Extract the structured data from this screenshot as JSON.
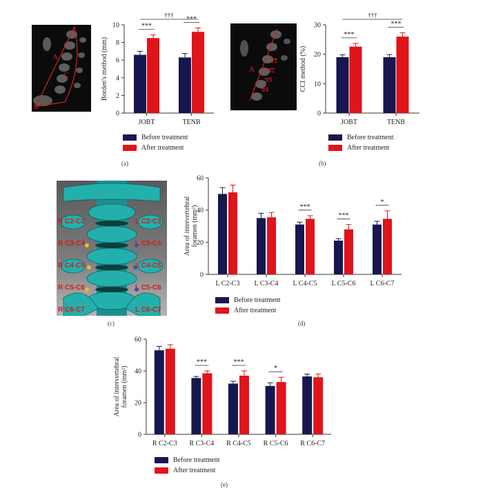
{
  "panels": {
    "a": "(a)",
    "b": "(b)",
    "c": "(c)",
    "d": "(d)",
    "e": "(e)"
  },
  "legend": {
    "before": "Before treatment",
    "after": "After treatment"
  },
  "colors": {
    "before": "#17174f",
    "after": "#e0141b",
    "ct_line": "#d82020",
    "spine_label": "#e01414",
    "vertebra": "#1d9f9f"
  },
  "ct_a_labels": [
    "A",
    "B",
    "C"
  ],
  "ct_b_labels": [
    "A",
    "a1",
    "a2",
    "a3",
    "a4"
  ],
  "spine_labels_left": [
    "R C2-C3",
    "R C3-C4",
    "R C4-C5",
    "R C5-C6",
    "R C6-C7"
  ],
  "spine_labels_right": [
    "L C2-C3",
    "L C3-C4",
    "L C4-C5",
    "L C5-C6",
    "L C6-C7"
  ],
  "chart_data": [
    {
      "id": "a",
      "type": "bar",
      "categories": [
        "JOBT",
        "TENB"
      ],
      "ylabel": "Borden's method (mm)",
      "ylim": [
        0,
        10
      ],
      "yticks": [
        0,
        2,
        4,
        6,
        8,
        10
      ],
      "series": [
        {
          "name": "Before treatment",
          "values": [
            6.6,
            6.3
          ],
          "errors": [
            0.4,
            0.45
          ]
        },
        {
          "name": "After treatment",
          "values": [
            8.5,
            9.2
          ],
          "errors": [
            0.35,
            0.45
          ]
        }
      ],
      "sig_within": [
        "***",
        "***"
      ],
      "sig_between": "†††"
    },
    {
      "id": "b",
      "type": "bar",
      "categories": [
        "JOBT",
        "TENB"
      ],
      "ylabel": "CCI method (%)",
      "ylim": [
        0,
        30
      ],
      "yticks": [
        0,
        10,
        20,
        30
      ],
      "series": [
        {
          "name": "Before treatment",
          "values": [
            19.0,
            19.0
          ],
          "errors": [
            0.8,
            0.9
          ]
        },
        {
          "name": "After treatment",
          "values": [
            22.6,
            26.0
          ],
          "errors": [
            1.1,
            1.3
          ]
        }
      ],
      "sig_within": [
        "***",
        "***"
      ],
      "sig_between": "†††"
    },
    {
      "id": "d",
      "type": "bar",
      "categories": [
        "L C2-C3",
        "L C3-C4",
        "L C4-C5",
        "L C5-C6",
        "L C6-C7"
      ],
      "ylabel_line1": "Area of intervertebral",
      "ylabel_line2": "foramen (mm²)",
      "ylim": [
        0,
        60
      ],
      "yticks": [
        0,
        20,
        40,
        60
      ],
      "series": [
        {
          "name": "Before treatment",
          "values": [
            50,
            35,
            31,
            21,
            31
          ],
          "errors": [
            4,
            3,
            1.5,
            1.2,
            2
          ]
        },
        {
          "name": "After treatment",
          "values": [
            51,
            35.5,
            34.5,
            28,
            34.5
          ],
          "errors": [
            4.5,
            3,
            2,
            3,
            5
          ]
        }
      ],
      "sig_within": [
        "",
        "",
        "***",
        "***",
        "*"
      ]
    },
    {
      "id": "e",
      "type": "bar",
      "categories": [
        "R C2-C3",
        "R C3-C4",
        "R C4-C5",
        "R C5-C6",
        "R C6-C7"
      ],
      "ylabel_line1": "Area of intervertebral",
      "ylabel_line2": "foramen (mm²)",
      "ylim": [
        0,
        60
      ],
      "yticks": [
        0,
        20,
        40,
        60
      ],
      "series": [
        {
          "name": "Before treatment",
          "values": [
            53,
            35.5,
            32,
            30.5,
            36.5
          ],
          "errors": [
            2.5,
            1,
            1.5,
            2,
            1.5
          ]
        },
        {
          "name": "After treatment",
          "values": [
            54,
            38.5,
            37,
            33,
            36
          ],
          "errors": [
            2.5,
            1.5,
            3,
            3,
            2
          ]
        }
      ],
      "sig_within": [
        "",
        "***",
        "***",
        "*",
        ""
      ]
    }
  ]
}
